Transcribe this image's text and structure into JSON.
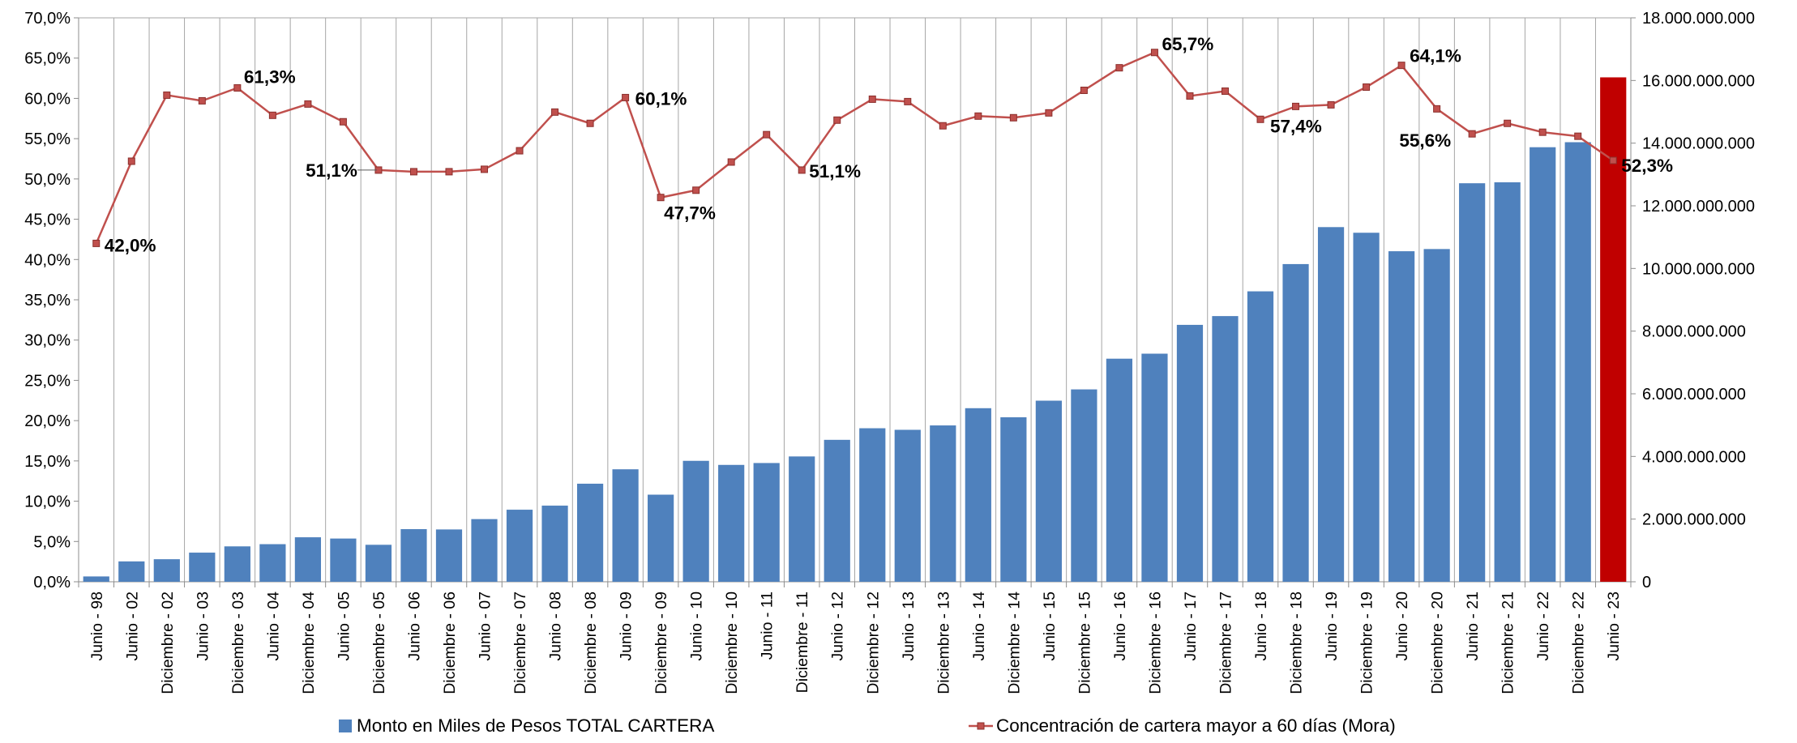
{
  "chart_data": {
    "type": "bar",
    "categories": [
      "Junio - 98",
      "Junio - 02",
      "Diciembre - 02",
      "Junio - 03",
      "Diciembre - 03",
      "Junio - 04",
      "Diciembre - 04",
      "Junio - 05",
      "Diciembre - 05",
      "Junio - 06",
      "Diciembre - 06",
      "Junio - 07",
      "Diciembre - 07",
      "Junio - 08",
      "Diciembre - 08",
      "Junio - 09",
      "Diciembre - 09",
      "Junio - 10",
      "Diciembre - 10",
      "Junio - 11",
      "Diciembre - 11",
      "Junio - 12",
      "Diciembre - 12",
      "Junio - 13",
      "Diciembre - 13",
      "Junio - 14",
      "Diciembre - 14",
      "Junio - 15",
      "Diciembre - 15",
      "Junio - 16",
      "Diciembre - 16",
      "Junio - 17",
      "Diciembre - 17",
      "Junio - 18",
      "Diciembre - 18",
      "Junio - 19",
      "Diciembre - 19",
      "Junio - 20",
      "Diciembre - 20",
      "Junio - 21",
      "Diciembre - 21",
      "Junio - 22",
      "Diciembre - 22",
      "Junio - 23"
    ],
    "series": [
      {
        "name": "Monto en Miles de Pesos TOTAL CARTERA",
        "type": "bar",
        "axis": "right",
        "color": "#4F81BD",
        "highlight_color": "#C00000",
        "highlight_index": 43,
        "values": [
          170000000,
          650000000,
          720000000,
          930000000,
          1130000000,
          1200000000,
          1420000000,
          1380000000,
          1180000000,
          1680000000,
          1670000000,
          2000000000,
          2300000000,
          2430000000,
          3130000000,
          3590000000,
          2780000000,
          3860000000,
          3730000000,
          3790000000,
          4000000000,
          4530000000,
          4900000000,
          4850000000,
          4990000000,
          5540000000,
          5250000000,
          5780000000,
          6140000000,
          7120000000,
          7280000000,
          8200000000,
          8480000000,
          9270000000,
          10140000000,
          11320000000,
          11140000000,
          10550000000,
          10620000000,
          12720000000,
          12750000000,
          13870000000,
          14030000000,
          16100000000
        ]
      },
      {
        "name": "Concentración de cartera mayor a 60 días (Mora)",
        "type": "line",
        "axis": "left",
        "color": "#C0504D",
        "values": [
          42.0,
          52.2,
          60.4,
          59.7,
          61.3,
          57.9,
          59.3,
          57.1,
          51.1,
          50.9,
          50.9,
          51.2,
          53.5,
          58.3,
          56.9,
          60.1,
          47.7,
          48.6,
          52.1,
          55.5,
          51.1,
          57.3,
          59.9,
          59.6,
          56.6,
          57.8,
          57.6,
          58.2,
          61.0,
          63.8,
          65.7,
          60.3,
          60.9,
          57.4,
          59.0,
          59.2,
          61.4,
          64.1,
          58.7,
          55.6,
          56.9,
          55.8,
          55.3,
          52.3
        ],
        "data_labels": [
          {
            "index": 0,
            "text": "42,0%"
          },
          {
            "index": 4,
            "text": "61,3%"
          },
          {
            "index": 8,
            "text": "51,1%"
          },
          {
            "index": 15,
            "text": "60,1%"
          },
          {
            "index": 16,
            "text": "47,7%"
          },
          {
            "index": 20,
            "text": "51,1%"
          },
          {
            "index": 30,
            "text": "65,7%"
          },
          {
            "index": 33,
            "text": "57,4%"
          },
          {
            "index": 37,
            "text": "64,1%"
          },
          {
            "index": 39,
            "text": "55,6%"
          },
          {
            "index": 43,
            "text": "52,3%"
          }
        ]
      }
    ],
    "y_left": {
      "ylim": [
        0,
        70
      ],
      "ticks": [
        "0,0%",
        "5,0%",
        "10,0%",
        "15,0%",
        "20,0%",
        "25,0%",
        "30,0%",
        "35,0%",
        "40,0%",
        "45,0%",
        "50,0%",
        "55,0%",
        "60,0%",
        "65,0%",
        "70,0%"
      ]
    },
    "y_right": {
      "ylim": [
        0,
        18000000000
      ],
      "ticks": [
        "0",
        "2.000.000.000",
        "4.000.000.000",
        "6.000.000.000",
        "8.000.000.000",
        "10.000.000.000",
        "12.000.000.000",
        "14.000.000.000",
        "16.000.000.000",
        "18.000.000.000"
      ]
    },
    "grid": "vertical",
    "legend": "bottom",
    "title": "",
    "xlabel": "",
    "ylabel": ""
  }
}
